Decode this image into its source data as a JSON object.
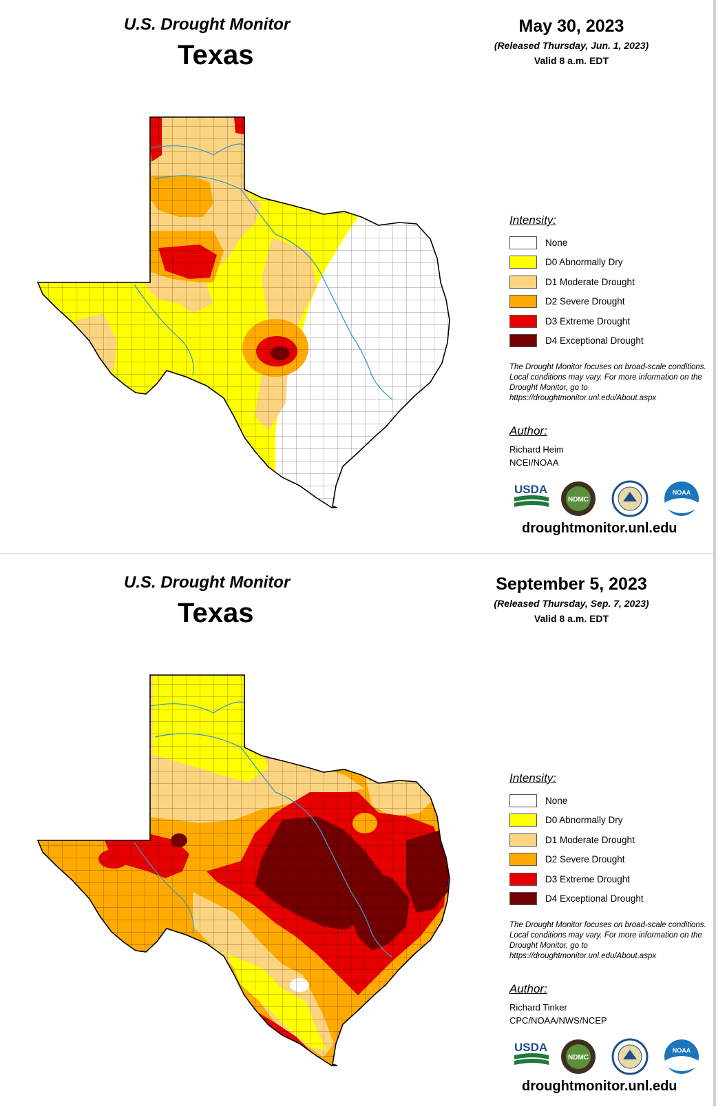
{
  "legend": {
    "title": "Intensity:",
    "items": [
      {
        "label": "None",
        "color": "#ffffff"
      },
      {
        "label": "D0 Abnormally Dry",
        "color": "#ffff00"
      },
      {
        "label": "D1 Moderate Drought",
        "color": "#fcd37f"
      },
      {
        "label": "D2 Severe Drought",
        "color": "#ffaa00"
      },
      {
        "label": "D3 Extreme Drought",
        "color": "#e60000"
      },
      {
        "label": "D4 Exceptional Drought",
        "color": "#730000"
      }
    ],
    "note": "The Drought Monitor focuses on broad-scale conditions. Local conditions may vary. For more information on the Drought Monitor, go to https://droughtmonitor.unl.edu/About.aspx"
  },
  "panels": [
    {
      "header": "U.S. Drought Monitor",
      "state": "Texas",
      "date": "May 30, 2023",
      "released": "(Released Thursday, Jun. 1, 2023)",
      "valid": "Valid 8 a.m. EDT",
      "author_title": "Author:",
      "author_name": "Richard Heim",
      "author_org": "NCEI/NOAA",
      "logos": [
        "USDA",
        "NDMC",
        "NOAA"
      ],
      "site": "droughtmonitor.unl.edu"
    },
    {
      "header": "U.S. Drought Monitor",
      "state": "Texas",
      "date": "September 5, 2023",
      "released": "(Released Thursday, Sep. 7, 2023)",
      "valid": "Valid 8 a.m. EDT",
      "author_title": "Author:",
      "author_name": "Richard Tinker",
      "author_org": "CPC/NOAA/NWS/NCEP",
      "logos": [
        "USDA",
        "NDMC",
        "NOAA"
      ],
      "site": "droughtmonitor.unl.edu"
    }
  ]
}
